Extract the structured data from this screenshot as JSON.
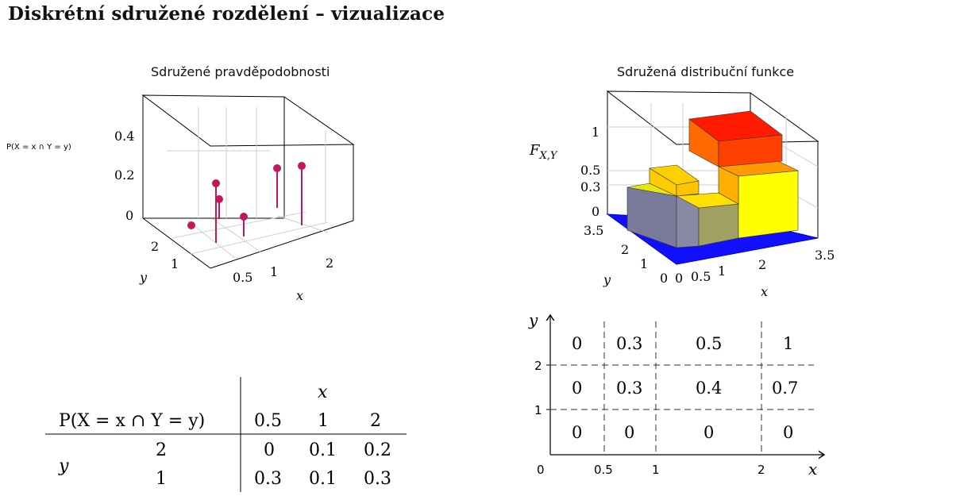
{
  "title": "Diskrétní sdružené rozdělení – vizualizace",
  "plot3d": {
    "title": "Sdružené pravděpodobnosti",
    "zlabel": "P(X = x ∩ Y = y)",
    "xlabel": "x",
    "ylabel": "y",
    "z_ticks": [
      "0.4",
      "0.2",
      "0"
    ],
    "x_ticks": [
      "0.5",
      "1",
      "2"
    ],
    "y_ticks": [
      "2",
      "1"
    ]
  },
  "cdf3d": {
    "title": "Sdružená distribuční funkce",
    "zlabel": "F",
    "zlabel_sub": "X,Y",
    "xlabel": "x",
    "ylabel": "y",
    "z_ticks": [
      "1",
      "0.5",
      "0.3",
      "0"
    ],
    "x_ticks": [
      "0",
      "0.5",
      "1",
      "2",
      "3.5"
    ],
    "y_ticks": [
      "3.5",
      "2",
      "1",
      "0"
    ]
  },
  "table": {
    "col_var": "x",
    "row_var": "y",
    "header": "P(X = x ∩ Y = y)",
    "columns": [
      "0.5",
      "1",
      "2"
    ],
    "rows": [
      {
        "y": "2",
        "values": [
          "0",
          "0.1",
          "0.2"
        ]
      },
      {
        "y": "1",
        "values": [
          "0.3",
          "0.1",
          "0.3"
        ]
      }
    ]
  },
  "cdf_grid": {
    "xlabel": "x",
    "ylabel": "y",
    "origin": "0",
    "x_ticks": [
      "0.5",
      "1",
      "2"
    ],
    "y_ticks": [
      "2",
      "1"
    ],
    "rows": [
      [
        "0",
        "0.3",
        "0.5",
        "1"
      ],
      [
        "0",
        "0.3",
        "0.4",
        "0.7"
      ],
      [
        "0",
        "0",
        "0",
        "0"
      ]
    ]
  },
  "chart_data": [
    {
      "type": "scatter",
      "title": "Sdružené pravděpodobnosti",
      "xlabel": "x",
      "ylabel": "y",
      "zlabel": "P(X = x ∩ Y = y)",
      "points": [
        {
          "x": 0.5,
          "y": 1,
          "p": 0.3
        },
        {
          "x": 1,
          "y": 1,
          "p": 0.1
        },
        {
          "x": 2,
          "y": 1,
          "p": 0.3
        },
        {
          "x": 0.5,
          "y": 2,
          "p": 0
        },
        {
          "x": 1,
          "y": 2,
          "p": 0.1
        },
        {
          "x": 2,
          "y": 2,
          "p": 0.2
        }
      ],
      "zlim": [
        0,
        0.4
      ]
    },
    {
      "type": "bar",
      "title": "Sdružená distribuční funkce",
      "xlabel": "x",
      "ylabel": "y",
      "zlabel": "F_{X,Y}",
      "x_breaks": [
        0,
        0.5,
        1,
        2,
        3.5
      ],
      "y_breaks": [
        0,
        1,
        2,
        3.5
      ],
      "values": [
        [
          0,
          0,
          0,
          0
        ],
        [
          0,
          0.3,
          0.4,
          0.7
        ],
        [
          0,
          0.3,
          0.5,
          1
        ]
      ]
    }
  ]
}
